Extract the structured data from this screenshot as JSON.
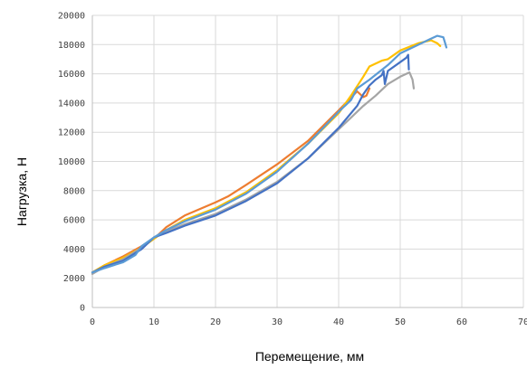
{
  "chart_data": {
    "type": "line",
    "xlabel": "Перемещение, мм",
    "ylabel": "Нагрузка, Н",
    "xlim": [
      0,
      70
    ],
    "ylim": [
      0,
      20000
    ],
    "x_ticks": [
      "0",
      "10",
      "20",
      "30",
      "40",
      "50",
      "60",
      "70"
    ],
    "y_ticks": [
      "0",
      "2000",
      "4000",
      "6000",
      "8000",
      "10000",
      "12000",
      "14000",
      "16000",
      "18000",
      "20000"
    ],
    "x_tick_values": [
      0,
      10,
      20,
      30,
      40,
      50,
      60,
      70
    ],
    "y_tick_values": [
      0,
      2000,
      4000,
      6000,
      8000,
      10000,
      12000,
      14000,
      16000,
      18000,
      20000
    ],
    "grid": true,
    "legend": "none",
    "series": [
      {
        "color": "#ED7D31",
        "points": [
          [
            0,
            2400
          ],
          [
            2,
            2900
          ],
          [
            5,
            3500
          ],
          [
            8,
            4200
          ],
          [
            10,
            4700
          ],
          [
            12,
            5500
          ],
          [
            15,
            6300
          ],
          [
            20,
            7200
          ],
          [
            22,
            7600
          ],
          [
            25,
            8400
          ],
          [
            30,
            9800
          ],
          [
            35,
            11400
          ],
          [
            40,
            13500
          ],
          [
            43,
            14800
          ],
          [
            44,
            14400
          ],
          [
            44.5,
            14500
          ],
          [
            45,
            15000
          ]
        ]
      },
      {
        "color": "#FFC000",
        "points": [
          [
            0,
            2400
          ],
          [
            2,
            2900
          ],
          [
            5,
            3400
          ],
          [
            8,
            4100
          ],
          [
            10,
            4700
          ],
          [
            12,
            5300
          ],
          [
            15,
            6000
          ],
          [
            20,
            6800
          ],
          [
            25,
            7900
          ],
          [
            30,
            9400
          ],
          [
            35,
            11200
          ],
          [
            40,
            13300
          ],
          [
            42,
            14500
          ],
          [
            44,
            15800
          ],
          [
            45,
            16500
          ],
          [
            47,
            16900
          ],
          [
            48,
            17000
          ],
          [
            50,
            17600
          ],
          [
            53,
            18100
          ],
          [
            55,
            18300
          ],
          [
            56,
            18100
          ],
          [
            56.5,
            17900
          ]
        ]
      },
      {
        "color": "#A5A5A5",
        "points": [
          [
            0,
            2300
          ],
          [
            2,
            2800
          ],
          [
            5,
            3300
          ],
          [
            8,
            4100
          ],
          [
            10,
            4800
          ],
          [
            12,
            5200
          ],
          [
            15,
            5700
          ],
          [
            20,
            6400
          ],
          [
            25,
            7400
          ],
          [
            30,
            8600
          ],
          [
            35,
            10200
          ],
          [
            40,
            12200
          ],
          [
            44,
            13800
          ],
          [
            46,
            14500
          ],
          [
            48,
            15300
          ],
          [
            50,
            15800
          ],
          [
            51,
            16000
          ],
          [
            51.5,
            16100
          ],
          [
            52,
            15600
          ],
          [
            52.2,
            15000
          ]
        ]
      },
      {
        "color": "#4472C4",
        "points": [
          [
            0,
            2400
          ],
          [
            2,
            2800
          ],
          [
            5,
            3200
          ],
          [
            8,
            4000
          ],
          [
            10,
            4800
          ],
          [
            12,
            5100
          ],
          [
            15,
            5600
          ],
          [
            20,
            6300
          ],
          [
            25,
            7300
          ],
          [
            30,
            8500
          ],
          [
            35,
            10200
          ],
          [
            40,
            12300
          ],
          [
            43,
            13800
          ],
          [
            44,
            14600
          ],
          [
            45,
            15200
          ],
          [
            46,
            15600
          ],
          [
            47,
            15900
          ],
          [
            47.3,
            16200
          ],
          [
            47.5,
            15300
          ],
          [
            48,
            16200
          ],
          [
            50,
            16800
          ],
          [
            51,
            17100
          ],
          [
            51.3,
            17300
          ],
          [
            51.4,
            16300
          ]
        ]
      },
      {
        "color": "#5B9BD5",
        "points": [
          [
            0,
            2400
          ],
          [
            2,
            2700
          ],
          [
            5,
            3100
          ],
          [
            7,
            3600
          ],
          [
            8,
            4200
          ],
          [
            10,
            4800
          ],
          [
            12,
            5300
          ],
          [
            15,
            5900
          ],
          [
            20,
            6700
          ],
          [
            25,
            7800
          ],
          [
            30,
            9300
          ],
          [
            35,
            11200
          ],
          [
            40,
            13400
          ],
          [
            42,
            14200
          ],
          [
            43,
            15000
          ],
          [
            45,
            15600
          ],
          [
            48,
            16600
          ],
          [
            50,
            17400
          ],
          [
            53,
            18000
          ],
          [
            55,
            18400
          ],
          [
            56,
            18600
          ],
          [
            57,
            18500
          ],
          [
            57.3,
            18100
          ],
          [
            57.5,
            17800
          ]
        ]
      }
    ]
  }
}
